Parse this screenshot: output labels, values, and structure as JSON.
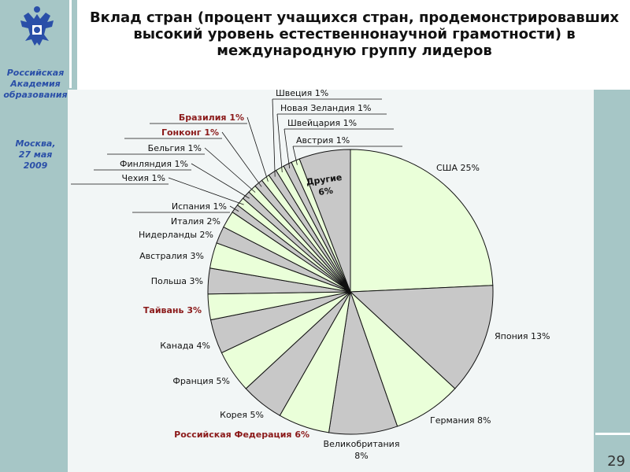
{
  "slide": {
    "title": "Вклад стран (процент учащихся стран, продемонстрировавших высокий уровень естественнонаучной грамотности) в международную группу лидеров",
    "page_number": "29"
  },
  "sidebar": {
    "emblem_icon": "double-headed-eagle-icon",
    "org_lines": [
      "Российская",
      "Академия",
      "образования"
    ],
    "place_lines": [
      "Москва,",
      "27  мая",
      "2009"
    ],
    "text_color": "#2a4fa8"
  },
  "chart_data": {
    "type": "pie",
    "title": "",
    "start_angle_deg": 0,
    "direction": "clockwise",
    "slices": [
      {
        "label": "США",
        "value": 25,
        "display": "25%",
        "color": "#eaffd9"
      },
      {
        "label": "Япония",
        "value": 13,
        "display": "13%",
        "color": "#c8c8c8"
      },
      {
        "label": "Германия",
        "value": 8,
        "display": "8%",
        "color": "#eaffd9"
      },
      {
        "label": "Великобритания",
        "value": 8,
        "display": "8%",
        "color": "#c8c8c8"
      },
      {
        "label": "Российская Федерация",
        "value": 6,
        "display": "6%",
        "color": "#eaffd9",
        "highlight": true
      },
      {
        "label": "Корея",
        "value": 5,
        "display": "5%",
        "color": "#c8c8c8"
      },
      {
        "label": "Франция",
        "value": 5,
        "display": "5%",
        "color": "#eaffd9"
      },
      {
        "label": "Канада",
        "value": 4,
        "display": "4%",
        "color": "#c8c8c8"
      },
      {
        "label": "Тайвань",
        "value": 3,
        "display": "3%",
        "color": "#eaffd9",
        "highlight": true
      },
      {
        "label": "Польша",
        "value": 3,
        "display": "3%",
        "color": "#c8c8c8"
      },
      {
        "label": "Австралия",
        "value": 3,
        "display": "3%",
        "color": "#eaffd9"
      },
      {
        "label": "Нидерланды",
        "value": 2,
        "display": "2%",
        "color": "#c8c8c8"
      },
      {
        "label": "Италия",
        "value": 2,
        "display": "2%",
        "color": "#eaffd9"
      },
      {
        "label": "Испания",
        "value": 1,
        "display": "1%",
        "color": "#c8c8c8"
      },
      {
        "label": "Чехия",
        "value": 1,
        "display": "1%",
        "color": "#eaffd9"
      },
      {
        "label": "Финляндия",
        "value": 1,
        "display": "1%",
        "color": "#c8c8c8"
      },
      {
        "label": "Бельгия",
        "value": 1,
        "display": "1%",
        "color": "#eaffd9"
      },
      {
        "label": "Гонконг",
        "value": 1,
        "display": "1%",
        "color": "#c8c8c8",
        "highlight": true
      },
      {
        "label": "Бразилия",
        "value": 1,
        "display": "1%",
        "color": "#eaffd9",
        "highlight": true
      },
      {
        "label": "Швеция",
        "value": 1,
        "display": "1%",
        "color": "#c8c8c8"
      },
      {
        "label": "Новая Зеландия",
        "value": 1,
        "display": "1%",
        "color": "#eaffd9"
      },
      {
        "label": "Швейцария",
        "value": 1,
        "display": "1%",
        "color": "#c8c8c8"
      },
      {
        "label": "Австрия",
        "value": 1,
        "display": "1%",
        "color": "#eaffd9"
      },
      {
        "label": "Другие",
        "value": 6,
        "display": "6%",
        "color": "#c8c8c8"
      }
    ],
    "label_color": "#111111",
    "highlight_color": "#8b1a1a",
    "legend": "none"
  }
}
